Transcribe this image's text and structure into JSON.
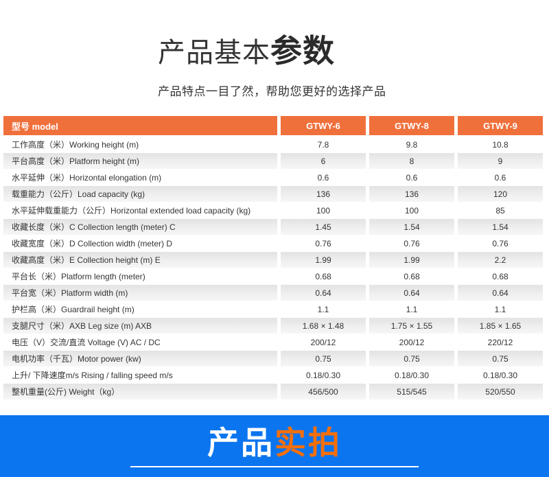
{
  "header": {
    "title_regular": "产品基本",
    "title_bold": "参数",
    "subtitle": "产品特点一目了然，帮助您更好的选择产品"
  },
  "spec_table": {
    "columns": [
      "型号 model",
      "GTWY-6",
      "GTWY-8",
      "GTWY-9"
    ],
    "rows": [
      {
        "label": "工作高度（米）Working height (m)",
        "values": [
          "7.8",
          "9.8",
          "10.8"
        ]
      },
      {
        "label": "平台高度（米）Platform height (m)",
        "values": [
          "6",
          "8",
          "9"
        ]
      },
      {
        "label": "水平延伸（米）Horizontal elongation (m)",
        "values": [
          "0.6",
          "0.6",
          "0.6"
        ]
      },
      {
        "label": "载重能力（公斤）Load capacity (kg)",
        "values": [
          "136",
          "136",
          "120"
        ]
      },
      {
        "label": "水平延伸载重能力（公斤）Horizontal extended load capacity (kg)",
        "values": [
          "100",
          "100",
          "85"
        ]
      },
      {
        "label": "收藏长度（米）C Collection length (meter) C",
        "values": [
          "1.45",
          "1.54",
          "1.54"
        ]
      },
      {
        "label": "收藏宽度（米）D Collection width (meter) D",
        "values": [
          "0.76",
          "0.76",
          "0.76"
        ]
      },
      {
        "label": "收藏高度（米）E Collection height (m) E",
        "values": [
          "1.99",
          "1.99",
          "2.2"
        ]
      },
      {
        "label": "平台长（米）Platform length (meter)",
        "values": [
          "0.68",
          "0.68",
          "0.68"
        ]
      },
      {
        "label": "平台宽（米）Platform width (m)",
        "values": [
          "0.64",
          "0.64",
          "0.64"
        ]
      },
      {
        "label": "护栏高（米）Guardrail height (m)",
        "values": [
          "1.1",
          "1.1",
          "1.1"
        ]
      },
      {
        "label": "支腿尺寸（米）AXB Leg size (m) AXB",
        "values": [
          "1.68 × 1.48",
          "1.75 × 1.55",
          "1.85 × 1.65"
        ]
      },
      {
        "label": "电压（V）交流/直流 Voltage (V) AC / DC",
        "values": [
          "200/12",
          "200/12",
          "220/12"
        ]
      },
      {
        "label": "电机功率（千瓦）Motor power (kw)",
        "values": [
          "0.75",
          "0.75",
          "0.75"
        ]
      },
      {
        "label": "上升/ 下降速度m/s Rising / falling speed m/s",
        "values": [
          "0.18/0.30",
          "0.18/0.30",
          "0.18/0.30"
        ]
      },
      {
        "label": "整机重量(公斤) Weight（kg）",
        "values": [
          "456/500",
          "515/545",
          "520/550"
        ]
      }
    ]
  },
  "footer_banner": {
    "text_white": "产品",
    "text_orange": "实拍"
  },
  "colors": {
    "header_orange": "#f0703c",
    "banner_blue": "#0b75ef",
    "banner_text_orange": "#f56f0a",
    "alt_row_gray": "#e9e9e9",
    "text_dark": "#333333"
  }
}
